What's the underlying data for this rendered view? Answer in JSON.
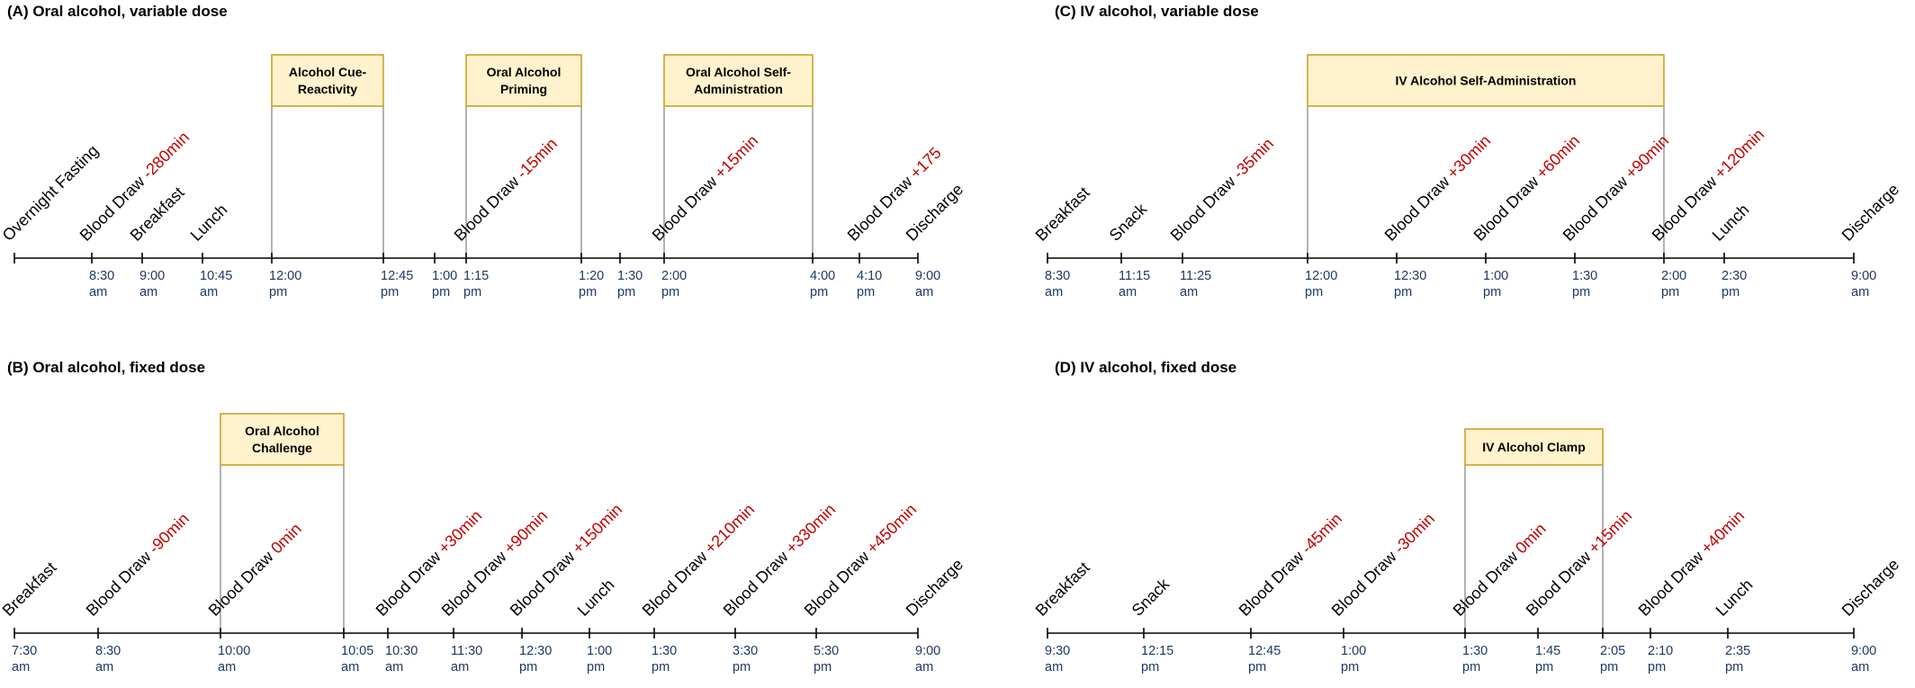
{
  "panels": [
    {
      "id": "A",
      "title": "(A) Oral alcohol, variable dose",
      "times": [
        {
          "time": "",
          "ampm": ""
        },
        {
          "time": "8:30",
          "ampm": "am"
        },
        {
          "time": "9:00",
          "ampm": "am"
        },
        {
          "time": "10:45",
          "ampm": "am"
        },
        {
          "time": "12:00",
          "ampm": "pm"
        },
        {
          "time": "12:45",
          "ampm": "pm"
        },
        {
          "time": "1:00",
          "ampm": "pm"
        },
        {
          "time": "1:15",
          "ampm": "pm"
        },
        {
          "time": "1:20",
          "ampm": "pm"
        },
        {
          "time": "1:30",
          "ampm": "pm"
        },
        {
          "time": "2:00",
          "ampm": "pm"
        },
        {
          "time": "4:00",
          "ampm": "pm"
        },
        {
          "time": "4:10",
          "ampm": "pm"
        },
        {
          "time": "9:00",
          "ampm": "am"
        }
      ],
      "events": [
        {
          "at": 0,
          "label": "Overnight Fasting",
          "offset": ""
        },
        {
          "at": 1,
          "label": "Blood Draw ",
          "offset": "-280min"
        },
        {
          "at": 2,
          "label": "Breakfast",
          "offset": ""
        },
        {
          "at": 3,
          "label": "Lunch",
          "offset": ""
        },
        {
          "at": 7,
          "label": "Blood Draw ",
          "offset": "-15min"
        },
        {
          "at": 10,
          "label": "Blood Draw ",
          "offset": "+15min"
        },
        {
          "at": 12,
          "label": "Blood Draw ",
          "offset": "+175"
        },
        {
          "at": 13,
          "label": "Discharge",
          "offset": ""
        }
      ],
      "boxes": [
        {
          "start": 4,
          "end": 5,
          "lines": [
            "Alcohol Cue-",
            "Reactivity"
          ]
        },
        {
          "start": 7,
          "end": 8,
          "lines": [
            "Oral Alcohol",
            "Priming"
          ]
        },
        {
          "start": 10,
          "end": 11,
          "lines": [
            "Oral Alcohol Self-",
            "Administration"
          ]
        }
      ]
    },
    {
      "id": "B",
      "title": "(B) Oral alcohol,  fixed dose",
      "times": [
        {
          "time": "7:30",
          "ampm": "am"
        },
        {
          "time": "8:30",
          "ampm": "am"
        },
        {
          "time": "10:00",
          "ampm": "am"
        },
        {
          "time": "10:05",
          "ampm": "am"
        },
        {
          "time": "10:30",
          "ampm": "am"
        },
        {
          "time": "11:30",
          "ampm": "am"
        },
        {
          "time": "12:30",
          "ampm": "pm"
        },
        {
          "time": "1:00",
          "ampm": "pm"
        },
        {
          "time": "1:30",
          "ampm": "pm"
        },
        {
          "time": "3:30",
          "ampm": "pm"
        },
        {
          "time": "5:30",
          "ampm": "pm"
        },
        {
          "time": "9:00",
          "ampm": "am"
        }
      ],
      "events": [
        {
          "at": 0,
          "label": "Breakfast",
          "offset": ""
        },
        {
          "at": 1,
          "label": "Blood Draw ",
          "offset": "-90min"
        },
        {
          "at": 2,
          "label": "Blood Draw ",
          "offset": "0min"
        },
        {
          "at": 4,
          "label": "Blood Draw ",
          "offset": "+30min"
        },
        {
          "at": 5,
          "label": "Blood Draw ",
          "offset": "+90min"
        },
        {
          "at": 6,
          "label": "Blood Draw ",
          "offset": "+150min"
        },
        {
          "at": 7,
          "label": "Lunch",
          "offset": ""
        },
        {
          "at": 8,
          "label": "Blood Draw ",
          "offset": "+210min"
        },
        {
          "at": 9,
          "label": "Blood Draw ",
          "offset": "+330min"
        },
        {
          "at": 10,
          "label": "Blood Draw ",
          "offset": "+450min"
        },
        {
          "at": 11,
          "label": "Discharge",
          "offset": ""
        }
      ],
      "boxes": [
        {
          "start": 2,
          "end": 3,
          "lines": [
            "Oral Alcohol",
            "Challenge"
          ]
        }
      ]
    },
    {
      "id": "C",
      "title": "(C) IV alcohol, variable dose",
      "times": [
        {
          "time": "8:30",
          "ampm": "am"
        },
        {
          "time": "11:15",
          "ampm": "am"
        },
        {
          "time": "11:25",
          "ampm": "am"
        },
        {
          "time": "12:00",
          "ampm": "pm"
        },
        {
          "time": "12:30",
          "ampm": "pm"
        },
        {
          "time": "1:00",
          "ampm": "pm"
        },
        {
          "time": "1:30",
          "ampm": "pm"
        },
        {
          "time": "2:00",
          "ampm": "pm"
        },
        {
          "time": "2:30",
          "ampm": "pm"
        },
        {
          "time": "9:00",
          "ampm": "am"
        }
      ],
      "events": [
        {
          "at": 0,
          "label": "Breakfast",
          "offset": ""
        },
        {
          "at": 1,
          "label": "Snack",
          "offset": ""
        },
        {
          "at": 2,
          "label": "Blood Draw ",
          "offset": "-35min"
        },
        {
          "at": 4,
          "label": "Blood Draw ",
          "offset": "+30min"
        },
        {
          "at": 5,
          "label": "Blood Draw ",
          "offset": "+60min"
        },
        {
          "at": 6,
          "label": "Blood Draw ",
          "offset": "+90min"
        },
        {
          "at": 7,
          "label": "Blood Draw ",
          "offset": "+120min"
        },
        {
          "at": 8,
          "label": "Lunch",
          "offset": ""
        },
        {
          "at": 9,
          "label": "Discharge",
          "offset": ""
        }
      ],
      "boxes": [
        {
          "start": 3,
          "end": 7,
          "lines": [
            "IV Alcohol Self-Administration"
          ]
        }
      ]
    },
    {
      "id": "D",
      "title": "(D) IV alcohol,  fixed dose",
      "times": [
        {
          "time": "9:30",
          "ampm": "am"
        },
        {
          "time": "12:15",
          "ampm": "pm"
        },
        {
          "time": "12:45",
          "ampm": "pm"
        },
        {
          "time": "1:00",
          "ampm": "pm"
        },
        {
          "time": "1:30",
          "ampm": "pm"
        },
        {
          "time": "1:45",
          "ampm": "pm"
        },
        {
          "time": "2:05",
          "ampm": "pm"
        },
        {
          "time": "2:10",
          "ampm": "pm"
        },
        {
          "time": "2:35",
          "ampm": "pm"
        },
        {
          "time": "9:00",
          "ampm": "am"
        }
      ],
      "events": [
        {
          "at": 0,
          "label": "Breakfast",
          "offset": ""
        },
        {
          "at": 1,
          "label": "Snack",
          "offset": ""
        },
        {
          "at": 2,
          "label": "Blood Draw ",
          "offset": "-45min"
        },
        {
          "at": 3,
          "label": "Blood Draw ",
          "offset": "-30min"
        },
        {
          "at": 4,
          "label": "Blood Draw ",
          "offset": "0min"
        },
        {
          "at": 5,
          "label": "Blood Draw ",
          "offset": "+15min"
        },
        {
          "at": 7,
          "label": "Blood Draw ",
          "offset": "+40min"
        },
        {
          "at": 8,
          "label": "Lunch",
          "offset": ""
        },
        {
          "at": 9,
          "label": "Discharge",
          "offset": ""
        }
      ],
      "boxes": [
        {
          "start": 4,
          "end": 6,
          "lines": [
            "IV Alcohol Clamp"
          ]
        }
      ]
    }
  ]
}
